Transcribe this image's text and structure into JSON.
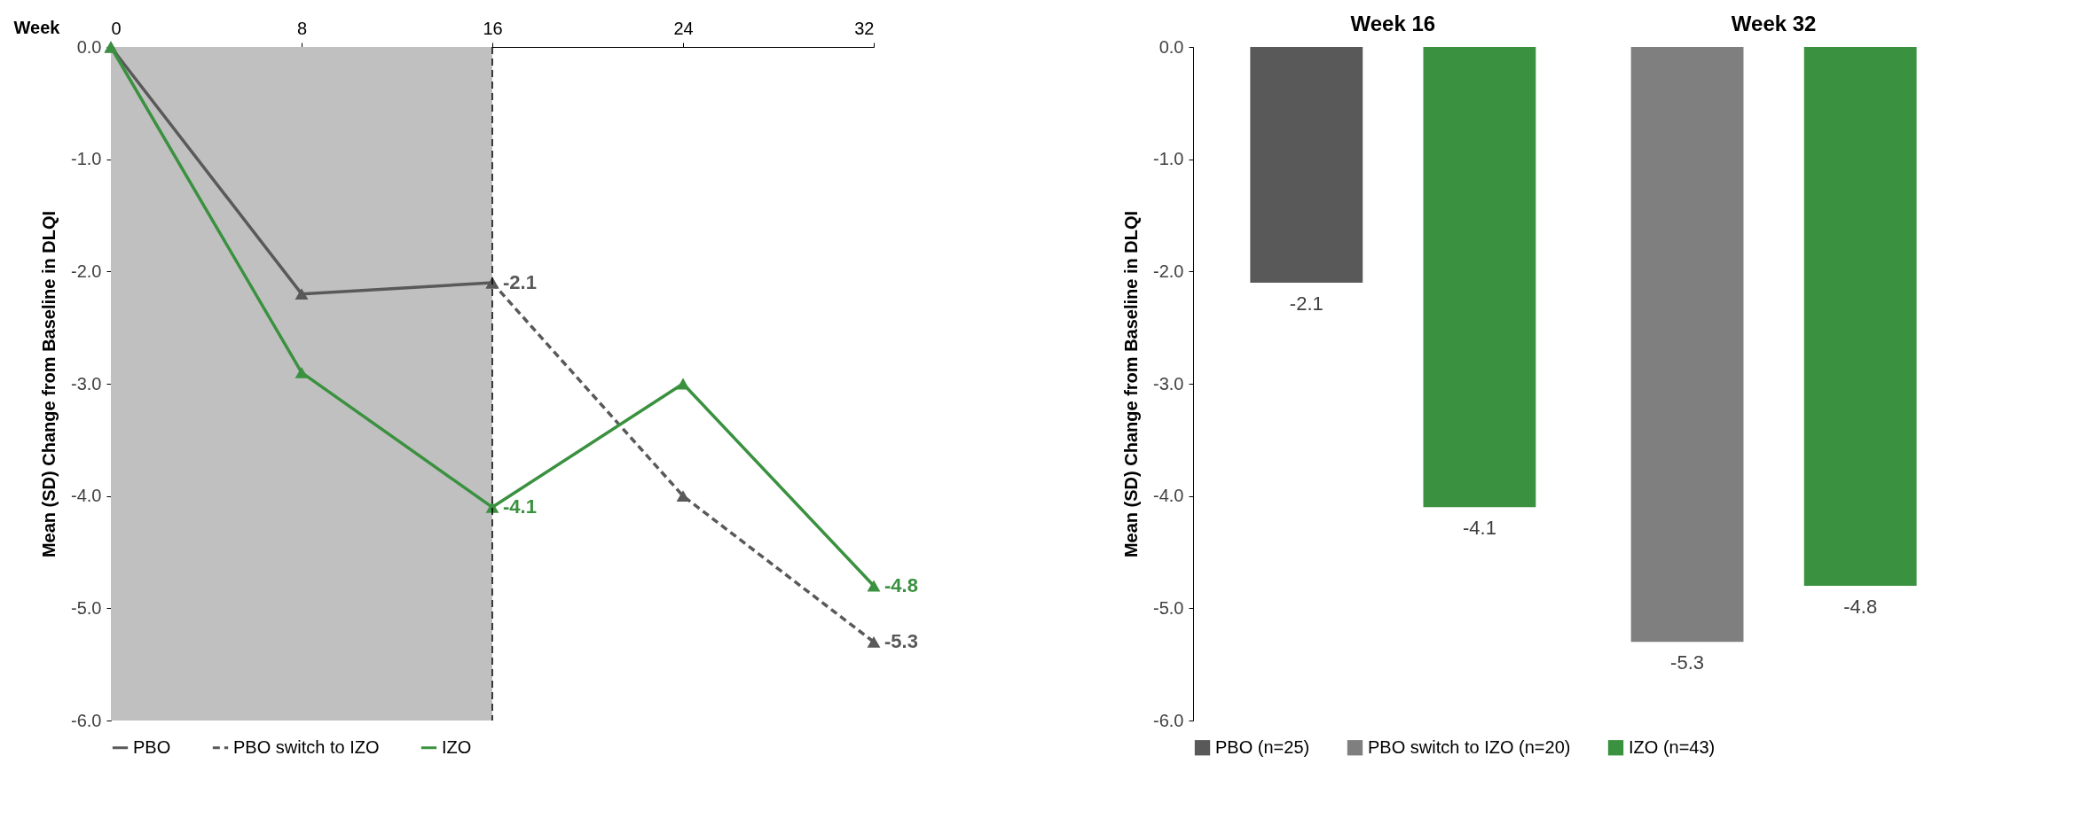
{
  "chart_data": [
    {
      "type": "line",
      "xlabel": "Week",
      "ylabel": "Mean (SD) Change from Baseline in DLQI",
      "xlim": [
        0,
        32
      ],
      "xticks": [
        0,
        8,
        16,
        24,
        32
      ],
      "ylim": [
        -6,
        0
      ],
      "yticks": [
        {
          "value": 0,
          "label": "0.0"
        },
        {
          "value": -1,
          "label": "-1.0"
        },
        {
          "value": -2,
          "label": "-2.0"
        },
        {
          "value": -3,
          "label": "-3.0"
        },
        {
          "value": -4,
          "label": "-4.0"
        },
        {
          "value": -5,
          "label": "-5.0"
        },
        {
          "value": -6,
          "label": "-6.0"
        }
      ],
      "marker": "triangle",
      "legend": "bottom",
      "grid": false,
      "series": [
        {
          "name": "PBO",
          "color": "#595959",
          "x": [
            0,
            8,
            16
          ],
          "values": [
            0,
            -2.2,
            -2.1
          ],
          "value_labels": [
            null,
            null,
            "-2.1"
          ],
          "line_style": "solid"
        },
        {
          "name": "PBO switch to IZO",
          "color": "#595959",
          "x": [
            16,
            24,
            32
          ],
          "values": [
            -2.1,
            -4.0,
            -5.3
          ],
          "value_labels": [
            null,
            null,
            "-5.3"
          ],
          "line_style": "dashed"
        },
        {
          "name": "IZO",
          "color": "#3a913f",
          "x": [
            0,
            8,
            16,
            24,
            32
          ],
          "values": [
            0,
            -2.9,
            -4.1,
            -3.0,
            -4.8
          ],
          "value_labels": [
            null,
            null,
            "-4.1",
            null,
            "-4.8"
          ],
          "line_style": "solid"
        }
      ],
      "bands": [
        {
          "axis": "x",
          "from": 0,
          "to": 16,
          "color": "#c0c0c0"
        }
      ],
      "ref_lines": [
        {
          "axis": "x",
          "value": 16,
          "color": "#000000",
          "line_style": "dashed"
        }
      ]
    },
    {
      "type": "bar",
      "ylabel": "Mean (SD) Change from Baseline in DLQI",
      "categories": [
        "Week 16",
        "Week 32"
      ],
      "ylim": [
        -6,
        0
      ],
      "yticks": [
        {
          "value": 0,
          "label": "0.0"
        },
        {
          "value": -1,
          "label": "-1.0"
        },
        {
          "value": -2,
          "label": "-2.0"
        },
        {
          "value": -3,
          "label": "-3.0"
        },
        {
          "value": -4,
          "label": "-4.0"
        },
        {
          "value": -5,
          "label": "-5.0"
        },
        {
          "value": -6,
          "label": "-6.0"
        }
      ],
      "legend": "bottom",
      "grid": false,
      "data_labels": true,
      "series": [
        {
          "name": "PBO (n=25)",
          "color": "#595959",
          "values": [
            -2.1,
            null
          ]
        },
        {
          "name": "PBO switch to IZO (n=20)",
          "color": "#7f7f7f",
          "values": [
            null,
            -5.3
          ]
        },
        {
          "name": "IZO (n=43)",
          "color": "#3a913f",
          "values": [
            -4.1,
            -4.8
          ]
        }
      ]
    }
  ]
}
